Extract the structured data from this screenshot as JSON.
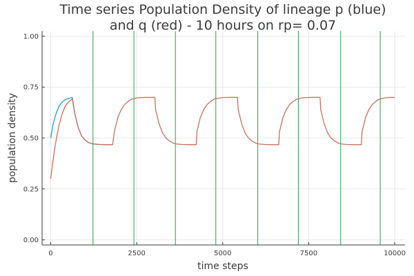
{
  "chart_data": {
    "type": "line",
    "title": "Time series Population Density of lineage p (blue)",
    "subtitle": "and q (red) - 10 hours on rp= 0.07",
    "xlabel": "time steps",
    "ylabel": "population density",
    "xlim": [
      -250,
      10300
    ],
    "ylim": [
      -0.025,
      1.025
    ],
    "x_ticks": [
      0,
      2500,
      5000,
      7500,
      10000
    ],
    "x_tick_labels": [
      "0",
      "2500",
      "5000",
      "7500",
      "10000"
    ],
    "y_ticks": [
      0.0,
      0.25,
      0.5,
      0.75,
      1.0
    ],
    "y_tick_labels": [
      "0.00",
      "0.25",
      "0.50",
      "0.75",
      "1.00"
    ],
    "grid": true,
    "legend": "none",
    "series": [
      {
        "color": "#1f9bd1",
        "x": [
          0,
          60,
          120,
          180,
          240,
          300,
          360,
          420,
          480,
          540,
          600,
          630,
          700,
          800,
          900,
          1000,
          1100,
          1200,
          1400,
          1600,
          1800
        ],
        "y": [
          0.5,
          0.56,
          0.6,
          0.63,
          0.655,
          0.67,
          0.68,
          0.688,
          0.692,
          0.695,
          0.697,
          0.698,
          0.62,
          0.55,
          0.51,
          0.49,
          0.478,
          0.472,
          0.468,
          0.467,
          0.467
        ]
      },
      {
        "color": "#c8705a",
        "x": [
          0,
          60,
          120,
          180,
          240,
          300,
          360,
          420,
          480,
          540,
          600,
          630,
          700,
          800,
          900,
          1000,
          1100,
          1200,
          1400,
          1600,
          1800,
          1850,
          1950,
          2050,
          2150,
          2250,
          2350,
          2450,
          2600,
          2800,
          3030,
          3050,
          3150,
          3250,
          3350,
          3450,
          3550,
          3650,
          3800,
          4000,
          4230,
          4250,
          4350,
          4450,
          4550,
          4650,
          4750,
          4850,
          5000,
          5200,
          5430,
          5450,
          5550,
          5650,
          5750,
          5850,
          5950,
          6050,
          6200,
          6400,
          6630,
          6650,
          6750,
          6850,
          6950,
          7050,
          7150,
          7250,
          7400,
          7600,
          7830,
          7850,
          7950,
          8050,
          8150,
          8250,
          8350,
          8450,
          8600,
          8800,
          9030,
          9050,
          9150,
          9250,
          9350,
          9450,
          9550,
          9650,
          9800,
          10000
        ],
        "y": [
          0.3,
          0.38,
          0.45,
          0.51,
          0.56,
          0.6,
          0.63,
          0.655,
          0.67,
          0.68,
          0.688,
          0.69,
          0.62,
          0.55,
          0.51,
          0.49,
          0.478,
          0.472,
          0.468,
          0.467,
          0.467,
          0.53,
          0.6,
          0.64,
          0.665,
          0.68,
          0.69,
          0.695,
          0.698,
          0.699,
          0.699,
          0.64,
          0.57,
          0.525,
          0.5,
          0.485,
          0.476,
          0.471,
          0.468,
          0.467,
          0.467,
          0.53,
          0.6,
          0.64,
          0.665,
          0.68,
          0.69,
          0.695,
          0.698,
          0.699,
          0.699,
          0.64,
          0.57,
          0.525,
          0.5,
          0.485,
          0.476,
          0.471,
          0.468,
          0.467,
          0.467,
          0.53,
          0.6,
          0.64,
          0.665,
          0.68,
          0.69,
          0.695,
          0.698,
          0.699,
          0.699,
          0.64,
          0.57,
          0.525,
          0.5,
          0.485,
          0.476,
          0.471,
          0.468,
          0.467,
          0.467,
          0.53,
          0.6,
          0.64,
          0.665,
          0.68,
          0.69,
          0.695,
          0.698,
          0.699
        ]
      }
    ],
    "vlines": {
      "color": "#2e9b48",
      "x": [
        1230,
        2420,
        3625,
        4800,
        6020,
        7200,
        8430,
        9580
      ]
    }
  }
}
